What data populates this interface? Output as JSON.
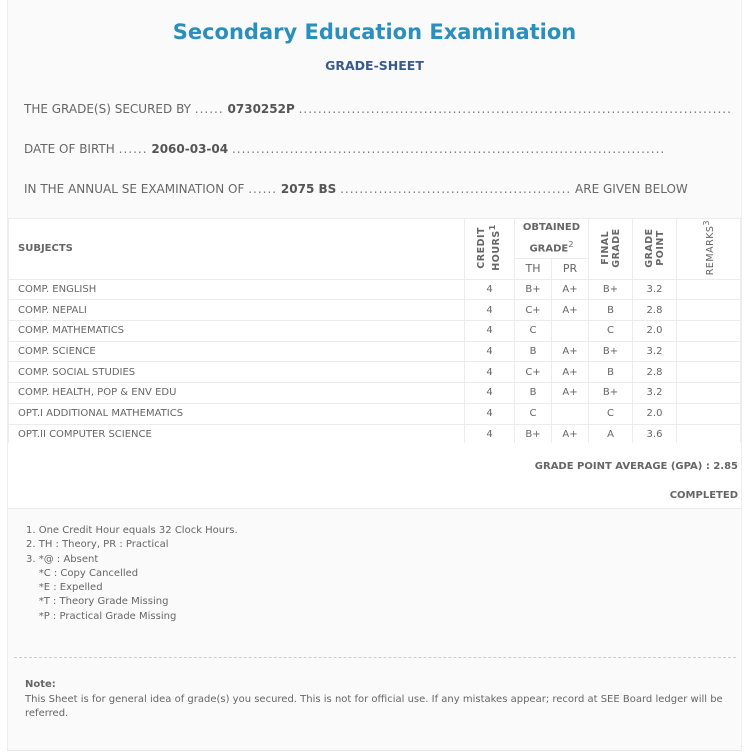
{
  "header": {
    "title": "Secondary Education Examination",
    "subtitle": "GRADE-SHEET"
  },
  "info": [
    {
      "label": "THE GRADE(S) SECURED BY",
      "value": "0730252P",
      "suffix": ""
    },
    {
      "label": "DATE OF BIRTH",
      "value": "2060-03-04",
      "suffix": ""
    },
    {
      "label": "IN THE ANNUAL SE EXAMINATION OF",
      "value": "2075 BS",
      "suffix": "ARE GIVEN BELOW"
    }
  ],
  "table": {
    "headers": {
      "subjects": "SUBJECTS",
      "credit": "CREDIT HOURS",
      "credit_sup": "1",
      "obtained": "OBTAINED GRADE",
      "obtained_sup": "2",
      "th": "TH",
      "pr": "PR",
      "final": "FINAL GRADE",
      "point": "GRADE POINT",
      "remarks": "REMARKS",
      "remarks_sup": "3"
    },
    "rows": [
      {
        "subject": "COMP. ENGLISH",
        "credit": "4",
        "th": "B+",
        "pr": "A+",
        "final": "B+",
        "point": "3.2",
        "remarks": ""
      },
      {
        "subject": "COMP. NEPALI",
        "credit": "4",
        "th": "C+",
        "pr": "A+",
        "final": "B",
        "point": "2.8",
        "remarks": ""
      },
      {
        "subject": "COMP. MATHEMATICS",
        "credit": "4",
        "th": "C",
        "pr": "",
        "final": "C",
        "point": "2.0",
        "remarks": ""
      },
      {
        "subject": "COMP. SCIENCE",
        "credit": "4",
        "th": "B",
        "pr": "A+",
        "final": "B+",
        "point": "3.2",
        "remarks": ""
      },
      {
        "subject": "COMP. SOCIAL STUDIES",
        "credit": "4",
        "th": "C+",
        "pr": "A+",
        "final": "B",
        "point": "2.8",
        "remarks": ""
      },
      {
        "subject": "COMP. HEALTH, POP & ENV EDU",
        "credit": "4",
        "th": "B",
        "pr": "A+",
        "final": "B+",
        "point": "3.2",
        "remarks": ""
      },
      {
        "subject": "OPT.I ADDITIONAL MATHEMATICS",
        "credit": "4",
        "th": "C",
        "pr": "",
        "final": "C",
        "point": "2.0",
        "remarks": ""
      },
      {
        "subject": "OPT.II COMPUTER SCIENCE",
        "credit": "4",
        "th": "B+",
        "pr": "A+",
        "final": "A",
        "point": "3.6",
        "remarks": ""
      }
    ]
  },
  "summary": {
    "gpa": "GRADE POINT AVERAGE (GPA) : 2.85",
    "status": "COMPLETED"
  },
  "footnotes": [
    "1. One Credit Hour equals 32 Clock Hours.",
    "2. TH : Theory, PR : Practical",
    "3. *@ : Absent",
    "    *C : Copy Cancelled",
    "    *E : Expelled",
    "    *T : Theory Grade Missing",
    "    *P : Practical Grade Missing"
  ],
  "note": {
    "title": "Note:",
    "text": "This Sheet is for general idea of grade(s) you secured. This is not for official use. If any mistakes appear; record at SEE Board ledger will be referred."
  }
}
